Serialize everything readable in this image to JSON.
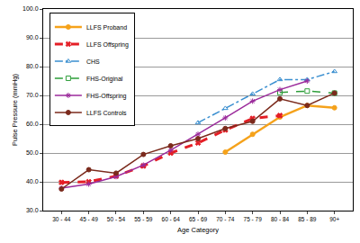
{
  "chart_data": {
    "type": "line",
    "x_label": "Age Category",
    "y_label": "Pulse Pressure (mmHg)",
    "categories": [
      "30 - 44",
      "45 - 49",
      "50 - 54",
      "55 - 59",
      "60 - 64",
      "65 - 69",
      "70 - 74",
      "75 - 79",
      "80 - 84",
      "85 - 89",
      "90+"
    ],
    "ylim": [
      30,
      100
    ],
    "yticks": [
      {
        "value": 30,
        "label": "30.0"
      },
      {
        "value": 40,
        "label": "40.0"
      },
      {
        "value": 50,
        "label": "50.0"
      },
      {
        "value": 60,
        "label": "60.0"
      },
      {
        "value": 70,
        "label": "70.0"
      },
      {
        "value": 80,
        "label": "80.0"
      },
      {
        "value": 90,
        "label": "90.0"
      },
      {
        "value": 100,
        "label": "100.0"
      }
    ],
    "grid": true,
    "legend": "top-left",
    "series": [
      {
        "name": "LLFS Proband",
        "color": "#f5a21b",
        "marker": "circle",
        "line_style": "solid",
        "values": [
          null,
          null,
          null,
          null,
          null,
          null,
          50.3,
          56.5,
          62.5,
          66.5,
          65.7
        ]
      },
      {
        "name": "LLFS Offspring",
        "color": "#e41e26",
        "marker": "x",
        "line_style": "dash",
        "values": [
          39.8,
          40.0,
          42.0,
          45.5,
          50.0,
          53.5,
          58.0,
          62.0,
          63.0,
          null,
          null
        ]
      },
      {
        "name": "CHS",
        "color": "#3a8fd0",
        "marker": "triangle-up-open",
        "line_style": "dashdot",
        "values": [
          null,
          null,
          null,
          null,
          null,
          60.5,
          65.5,
          70.5,
          75.5,
          75.5,
          78.3
        ]
      },
      {
        "name": "FHS-Original",
        "color": "#2e9e3a",
        "marker": "square-open",
        "line_style": "dash",
        "values": [
          null,
          null,
          null,
          null,
          null,
          null,
          null,
          null,
          71.0,
          71.5,
          70.8
        ]
      },
      {
        "name": "FHS-Offspring",
        "color": "#9b2a9b",
        "marker": "asterisk-open",
        "line_style": "solid",
        "values": [
          37.8,
          39.2,
          41.8,
          45.8,
          51.0,
          56.5,
          62.2,
          68.0,
          72.0,
          75.0,
          null
        ]
      },
      {
        "name": "LLFS Controls",
        "color": "#7b2a1c",
        "marker": "circle",
        "line_style": "solid",
        "values": [
          37.5,
          44.2,
          43.0,
          49.5,
          52.5,
          55.0,
          58.5,
          61.0,
          68.8,
          66.5,
          70.8
        ]
      }
    ]
  }
}
